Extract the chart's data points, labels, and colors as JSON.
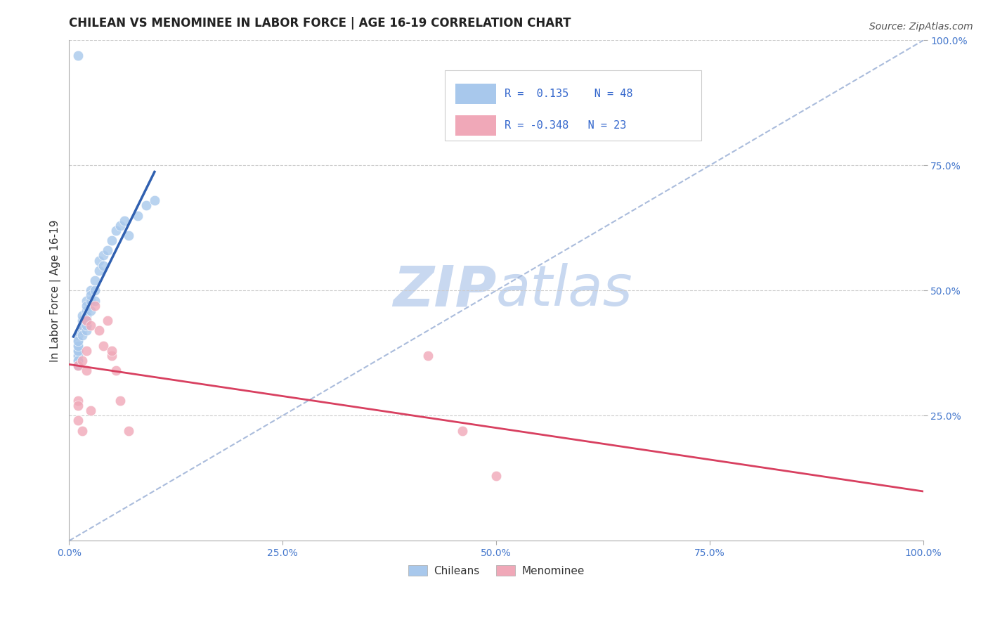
{
  "title": "CHILEAN VS MENOMINEE IN LABOR FORCE | AGE 16-19 CORRELATION CHART",
  "source_text": "Source: ZipAtlas.com",
  "ylabel": "In Labor Force | Age 16-19",
  "xlim": [
    0.0,
    1.0
  ],
  "ylim": [
    0.0,
    1.0
  ],
  "xtick_labels": [
    "0.0%",
    "25.0%",
    "50.0%",
    "75.0%",
    "100.0%"
  ],
  "xtick_vals": [
    0.0,
    0.25,
    0.5,
    0.75,
    1.0
  ],
  "ytick_labels": [
    "25.0%",
    "50.0%",
    "75.0%",
    "100.0%"
  ],
  "ytick_vals": [
    0.25,
    0.5,
    0.75,
    1.0
  ],
  "blue_color": "#A8C8EC",
  "pink_color": "#F0A8B8",
  "blue_line_color": "#3060B0",
  "pink_line_color": "#D84060",
  "diagonal_color": "#AABCDC",
  "watermark_zip_color": "#C8D8F0",
  "watermark_atlas_color": "#C8D8F0",
  "chileans_x": [
    0.01,
    0.01,
    0.01,
    0.01,
    0.01,
    0.01,
    0.01,
    0.01,
    0.01,
    0.01,
    0.01,
    0.01,
    0.01,
    0.015,
    0.015,
    0.015,
    0.015,
    0.015,
    0.015,
    0.02,
    0.02,
    0.02,
    0.02,
    0.02,
    0.02,
    0.02,
    0.02,
    0.025,
    0.025,
    0.025,
    0.025,
    0.03,
    0.03,
    0.03,
    0.035,
    0.035,
    0.04,
    0.04,
    0.045,
    0.05,
    0.055,
    0.06,
    0.065,
    0.07,
    0.08,
    0.09,
    0.1,
    0.01
  ],
  "chileans_y": [
    0.4,
    0.38,
    0.37,
    0.36,
    0.38,
    0.39,
    0.41,
    0.37,
    0.36,
    0.35,
    0.38,
    0.39,
    0.4,
    0.42,
    0.43,
    0.44,
    0.45,
    0.41,
    0.43,
    0.44,
    0.46,
    0.48,
    0.45,
    0.47,
    0.42,
    0.43,
    0.44,
    0.5,
    0.48,
    0.46,
    0.49,
    0.52,
    0.5,
    0.48,
    0.54,
    0.56,
    0.55,
    0.57,
    0.58,
    0.6,
    0.62,
    0.63,
    0.64,
    0.61,
    0.65,
    0.67,
    0.68,
    0.97
  ],
  "menominee_x": [
    0.01,
    0.01,
    0.01,
    0.01,
    0.015,
    0.015,
    0.02,
    0.02,
    0.02,
    0.025,
    0.025,
    0.03,
    0.035,
    0.04,
    0.045,
    0.05,
    0.05,
    0.055,
    0.06,
    0.07,
    0.42,
    0.46,
    0.5
  ],
  "menominee_y": [
    0.35,
    0.28,
    0.27,
    0.24,
    0.36,
    0.22,
    0.44,
    0.38,
    0.34,
    0.43,
    0.26,
    0.47,
    0.42,
    0.39,
    0.44,
    0.37,
    0.38,
    0.34,
    0.28,
    0.22,
    0.37,
    0.22,
    0.13
  ],
  "title_fontsize": 12,
  "axis_label_fontsize": 11,
  "tick_fontsize": 10,
  "legend_fontsize": 11,
  "source_fontsize": 10
}
